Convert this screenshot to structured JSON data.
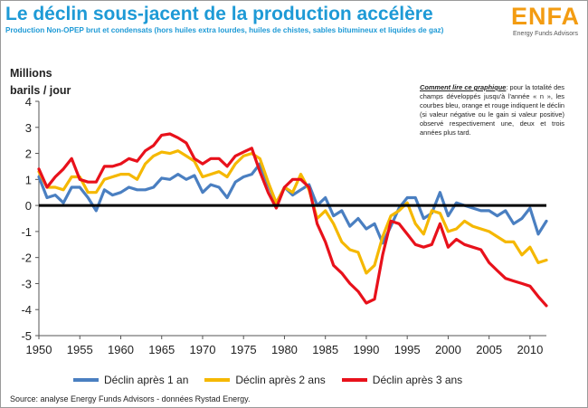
{
  "header": {
    "title": "Le déclin sous-jacent de la production accélère",
    "subtitle": "Production Non-OPEP brut et condensats (hors huiles extra lourdes, huiles de chistes, sables bitumineux et liquides de gaz)"
  },
  "logo": {
    "name": "ENFA",
    "tagline": "Energy Funds Advisors"
  },
  "note": {
    "lead": "Comment lire ce graphique",
    "text": ": pour la totalité des champs développés jusqu'à l'année « n », les courbes bleu, orange et rouge indiquent le déclin (si valeur négative ou le gain si valeur positive) observé respectivement une, deux et trois années plus tard."
  },
  "source": "Source: analyse Energy Funds Advisors - données Rystad Energy.",
  "chart_data": {
    "type": "line",
    "ylabel_line1": "Millions",
    "ylabel_line2": "barils / jour",
    "xlim": [
      1950,
      2012
    ],
    "ylim": [
      -5,
      4
    ],
    "y_ticks": [
      -5,
      -4,
      -3,
      -2,
      -1,
      0,
      1,
      2,
      3,
      4
    ],
    "x_ticks": [
      1950,
      1955,
      1960,
      1965,
      1970,
      1975,
      1980,
      1985,
      1990,
      1995,
      2000,
      2005,
      2010
    ],
    "grid": false,
    "legend_position": "bottom",
    "series": [
      {
        "name": "Déclin après 1 an",
        "color": "#4a7fc1",
        "points": [
          [
            1950,
            1.1
          ],
          [
            1951,
            0.3
          ],
          [
            1952,
            0.4
          ],
          [
            1953,
            0.1
          ],
          [
            1954,
            0.7
          ],
          [
            1955,
            0.7
          ],
          [
            1956,
            0.3
          ],
          [
            1957,
            -0.2
          ],
          [
            1958,
            0.6
          ],
          [
            1959,
            0.4
          ],
          [
            1960,
            0.5
          ],
          [
            1961,
            0.7
          ],
          [
            1962,
            0.6
          ],
          [
            1963,
            0.6
          ],
          [
            1964,
            0.7
          ],
          [
            1965,
            1.05
          ],
          [
            1966,
            1.0
          ],
          [
            1967,
            1.2
          ],
          [
            1968,
            1.0
          ],
          [
            1969,
            1.15
          ],
          [
            1970,
            0.5
          ],
          [
            1971,
            0.8
          ],
          [
            1972,
            0.7
          ],
          [
            1973,
            0.3
          ],
          [
            1974,
            0.9
          ],
          [
            1975,
            1.1
          ],
          [
            1976,
            1.2
          ],
          [
            1977,
            1.6
          ],
          [
            1978,
            0.8
          ],
          [
            1979,
            0.1
          ],
          [
            1980,
            0.7
          ],
          [
            1981,
            0.4
          ],
          [
            1982,
            0.6
          ],
          [
            1983,
            0.8
          ],
          [
            1984,
            0.0
          ],
          [
            1985,
            0.3
          ],
          [
            1986,
            -0.4
          ],
          [
            1987,
            -0.2
          ],
          [
            1988,
            -0.8
          ],
          [
            1989,
            -0.5
          ],
          [
            1990,
            -0.9
          ],
          [
            1991,
            -0.7
          ],
          [
            1992,
            -1.45
          ],
          [
            1993,
            -0.8
          ],
          [
            1994,
            -0.1
          ],
          [
            1995,
            0.3
          ],
          [
            1996,
            0.3
          ],
          [
            1997,
            -0.5
          ],
          [
            1998,
            -0.3
          ],
          [
            1999,
            0.5
          ],
          [
            2000,
            -0.4
          ],
          [
            2001,
            0.1
          ],
          [
            2002,
            0.0
          ],
          [
            2003,
            -0.1
          ],
          [
            2004,
            -0.2
          ],
          [
            2005,
            -0.2
          ],
          [
            2006,
            -0.4
          ],
          [
            2007,
            -0.2
          ],
          [
            2008,
            -0.7
          ],
          [
            2009,
            -0.5
          ],
          [
            2010,
            -0.1
          ],
          [
            2011,
            -1.1
          ],
          [
            2012,
            -0.6
          ]
        ]
      },
      {
        "name": "Déclin après 2 ans",
        "color": "#f5b800",
        "points": [
          [
            1950,
            1.3
          ],
          [
            1951,
            0.7
          ],
          [
            1952,
            0.7
          ],
          [
            1953,
            0.6
          ],
          [
            1954,
            1.1
          ],
          [
            1955,
            1.1
          ],
          [
            1956,
            0.5
          ],
          [
            1957,
            0.5
          ],
          [
            1958,
            1.0
          ],
          [
            1959,
            1.1
          ],
          [
            1960,
            1.2
          ],
          [
            1961,
            1.2
          ],
          [
            1962,
            1.0
          ],
          [
            1963,
            1.6
          ],
          [
            1964,
            1.9
          ],
          [
            1965,
            2.05
          ],
          [
            1966,
            2.0
          ],
          [
            1967,
            2.1
          ],
          [
            1968,
            1.9
          ],
          [
            1969,
            1.7
          ],
          [
            1970,
            1.1
          ],
          [
            1971,
            1.2
          ],
          [
            1972,
            1.3
          ],
          [
            1973,
            1.1
          ],
          [
            1974,
            1.6
          ],
          [
            1975,
            1.9
          ],
          [
            1976,
            2.0
          ],
          [
            1977,
            1.8
          ],
          [
            1978,
            0.9
          ],
          [
            1979,
            0.1
          ],
          [
            1980,
            0.7
          ],
          [
            1981,
            0.5
          ],
          [
            1982,
            1.2
          ],
          [
            1983,
            0.6
          ],
          [
            1984,
            -0.5
          ],
          [
            1985,
            -0.2
          ],
          [
            1986,
            -0.7
          ],
          [
            1987,
            -1.4
          ],
          [
            1988,
            -1.7
          ],
          [
            1989,
            -1.8
          ],
          [
            1990,
            -2.6
          ],
          [
            1991,
            -2.3
          ],
          [
            1992,
            -1.2
          ],
          [
            1993,
            -0.4
          ],
          [
            1994,
            -0.2
          ],
          [
            1995,
            0.1
          ],
          [
            1996,
            -0.7
          ],
          [
            1997,
            -1.1
          ],
          [
            1998,
            -0.2
          ],
          [
            1999,
            -0.3
          ],
          [
            2000,
            -1.0
          ],
          [
            2001,
            -0.9
          ],
          [
            2002,
            -0.6
          ],
          [
            2003,
            -0.8
          ],
          [
            2004,
            -0.9
          ],
          [
            2005,
            -1.0
          ],
          [
            2006,
            -1.2
          ],
          [
            2007,
            -1.4
          ],
          [
            2008,
            -1.4
          ],
          [
            2009,
            -1.9
          ],
          [
            2010,
            -1.6
          ],
          [
            2011,
            -2.2
          ],
          [
            2012,
            -2.1
          ]
        ]
      },
      {
        "name": "Déclin après 3 ans",
        "color": "#e8111b",
        "points": [
          [
            1950,
            1.4
          ],
          [
            1951,
            0.7
          ],
          [
            1952,
            1.1
          ],
          [
            1953,
            1.4
          ],
          [
            1954,
            1.8
          ],
          [
            1955,
            1.0
          ],
          [
            1956,
            0.9
          ],
          [
            1957,
            0.9
          ],
          [
            1958,
            1.5
          ],
          [
            1959,
            1.5
          ],
          [
            1960,
            1.6
          ],
          [
            1961,
            1.8
          ],
          [
            1962,
            1.7
          ],
          [
            1963,
            2.1
          ],
          [
            1964,
            2.3
          ],
          [
            1965,
            2.7
          ],
          [
            1966,
            2.75
          ],
          [
            1967,
            2.6
          ],
          [
            1968,
            2.4
          ],
          [
            1969,
            1.8
          ],
          [
            1970,
            1.6
          ],
          [
            1971,
            1.8
          ],
          [
            1972,
            1.8
          ],
          [
            1973,
            1.5
          ],
          [
            1974,
            1.9
          ],
          [
            1975,
            2.05
          ],
          [
            1976,
            2.2
          ],
          [
            1977,
            1.3
          ],
          [
            1978,
            0.5
          ],
          [
            1979,
            -0.1
          ],
          [
            1980,
            0.7
          ],
          [
            1981,
            1.0
          ],
          [
            1982,
            1.0
          ],
          [
            1983,
            0.7
          ],
          [
            1984,
            -0.7
          ],
          [
            1985,
            -1.4
          ],
          [
            1986,
            -2.3
          ],
          [
            1987,
            -2.6
          ],
          [
            1988,
            -3.0
          ],
          [
            1989,
            -3.3
          ],
          [
            1990,
            -3.75
          ],
          [
            1991,
            -3.6
          ],
          [
            1992,
            -1.9
          ],
          [
            1993,
            -0.6
          ],
          [
            1994,
            -0.7
          ],
          [
            1995,
            -1.1
          ],
          [
            1996,
            -1.5
          ],
          [
            1997,
            -1.6
          ],
          [
            1998,
            -1.5
          ],
          [
            1999,
            -0.7
          ],
          [
            2000,
            -1.6
          ],
          [
            2001,
            -1.3
          ],
          [
            2002,
            -1.5
          ],
          [
            2003,
            -1.6
          ],
          [
            2004,
            -1.7
          ],
          [
            2005,
            -2.2
          ],
          [
            2006,
            -2.5
          ],
          [
            2007,
            -2.8
          ],
          [
            2008,
            -2.9
          ],
          [
            2009,
            -3.0
          ],
          [
            2010,
            -3.1
          ],
          [
            2011,
            -3.5
          ],
          [
            2012,
            -3.85
          ]
        ]
      }
    ]
  }
}
